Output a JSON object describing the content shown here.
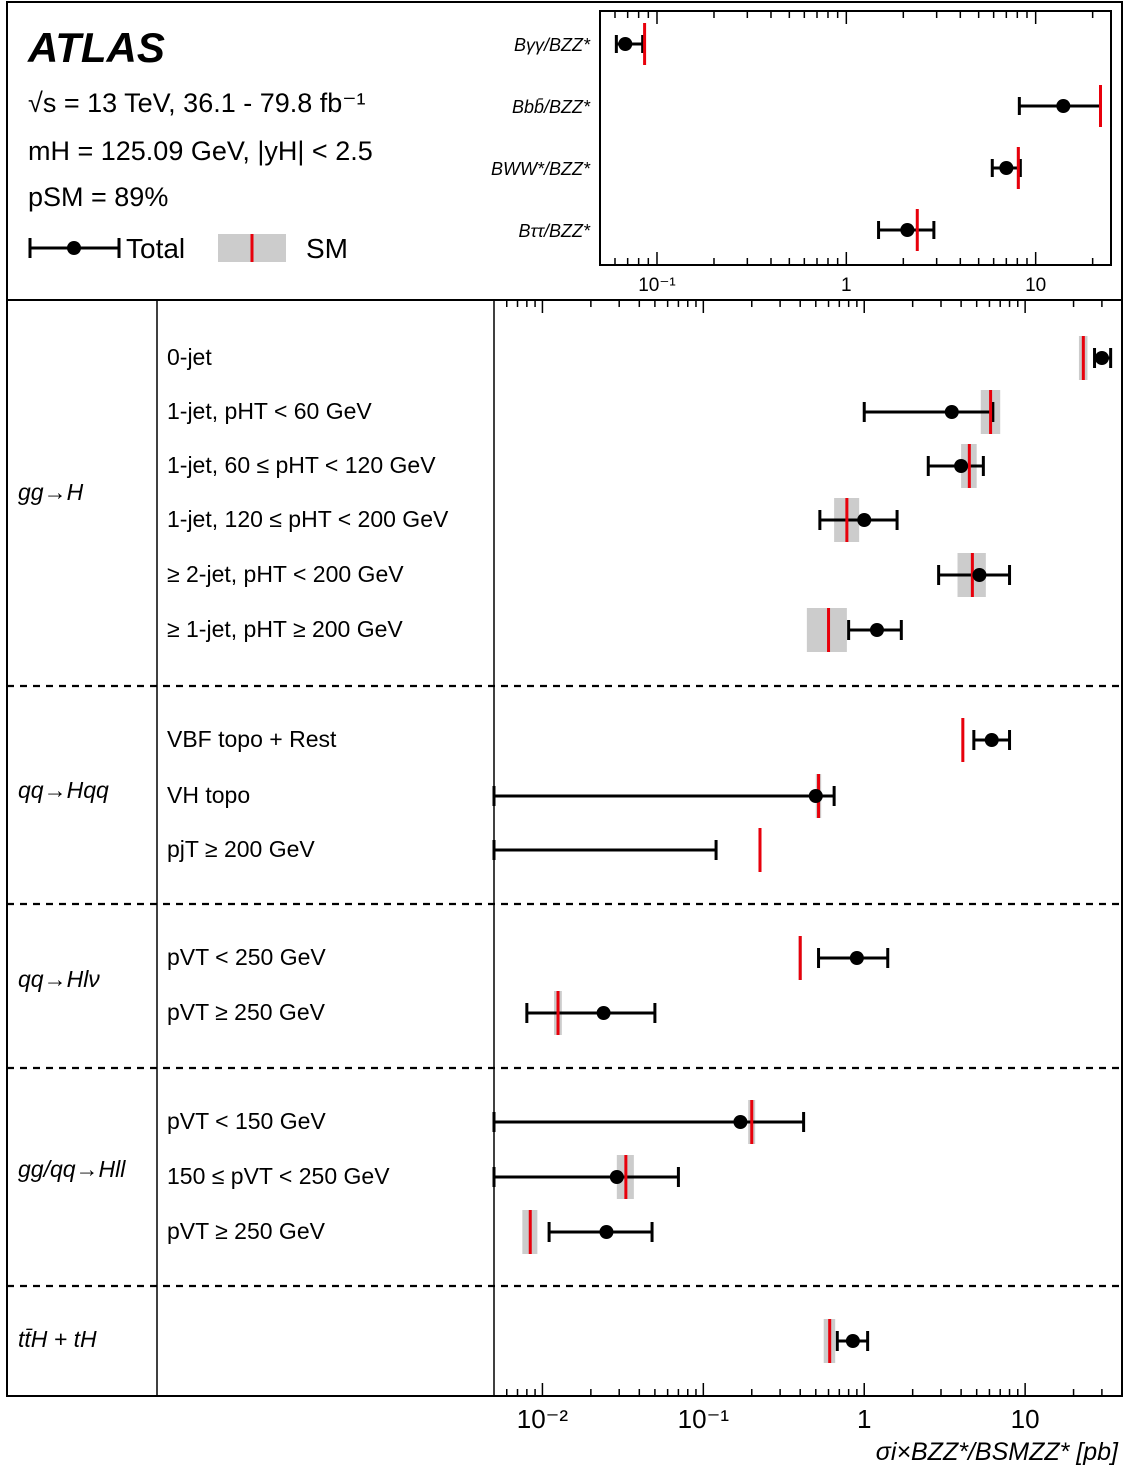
{
  "legend": {
    "experiment": "ATLAS",
    "energy_lumi": "√s = 13 TeV, 36.1 - 79.8 fb⁻¹",
    "mass_rapidity": "mH = 125.09 GeV, |yH| < 2.5",
    "p_sm": "pSM = 89%",
    "total_label": "Total",
    "sm_label": "SM"
  },
  "colors": {
    "sm_line": "#e8000b",
    "sm_band": "#cccccc",
    "marker": "#000000",
    "frame": "#000000"
  },
  "chart_data": [
    {
      "type": "scatter",
      "subtype": "horizontal-error-bars",
      "xscale": "log",
      "xlim": [
        0.05,
        25
      ],
      "xticks": [
        "10⁻¹",
        "1",
        "10"
      ],
      "grid": false,
      "points": [
        {
          "label": "Bγγ/BZZ*",
          "value": 0.068,
          "err_low": 0.061,
          "err_high": 0.084,
          "sm": 0.086,
          "sm_band": [
            0.085,
            0.087
          ]
        },
        {
          "label": "Bbb̄/BZZ*",
          "value": 14.0,
          "err_low": 8.2,
          "err_high": 22.0,
          "sm": 22.0,
          "sm_band": [
            21.8,
            22.2
          ]
        },
        {
          "label": "BWW*/BZZ*",
          "value": 7.0,
          "err_low": 5.9,
          "err_high": 8.3,
          "sm": 8.1,
          "sm_band": [
            7.95,
            8.25
          ]
        },
        {
          "label": "Bττ/BZZ*",
          "value": 2.1,
          "err_low": 1.48,
          "err_high": 2.9,
          "sm": 2.37,
          "sm_band": [
            2.34,
            2.4
          ]
        }
      ]
    },
    {
      "type": "scatter",
      "subtype": "horizontal-error-bars",
      "xscale": "log",
      "xlim": [
        0.005,
        40
      ],
      "xticks": [
        "10⁻²",
        "10⁻¹",
        "1",
        "10"
      ],
      "xlabel": "σi×BZZ*/BSMZZ* [pb]",
      "grid": false,
      "groups": [
        {
          "label": "gg→H",
          "bins": [
            {
              "label": "0-jet",
              "value": 30.0,
              "err_low": 27.0,
              "err_high": 34.0,
              "sm": 23.0,
              "sm_band": [
                21.6,
                24.4
              ]
            },
            {
              "label": "1-jet, pHT < 60 GeV",
              "value": 3.5,
              "err_low": 1.0,
              "err_high": 6.3,
              "sm": 6.1,
              "sm_band": [
                5.3,
                7.0
              ]
            },
            {
              "label": "1-jet, 60 ≤ pHT < 120 GeV",
              "value": 4.0,
              "err_low": 2.5,
              "err_high": 5.5,
              "sm": 4.5,
              "sm_band": [
                4.0,
                5.0
              ]
            },
            {
              "label": "1-jet, 120 ≤ pHT < 200 GeV",
              "value": 1.0,
              "err_low": 0.53,
              "err_high": 1.6,
              "sm": 0.78,
              "sm_band": [
                0.65,
                0.93
              ]
            },
            {
              "label": "≥ 2-jet, pHT < 200 GeV",
              "value": 5.2,
              "err_low": 2.9,
              "err_high": 8.0,
              "sm": 4.7,
              "sm_band": [
                3.8,
                5.7
              ]
            },
            {
              "label": "≥ 1-jet, pHT ≥ 200 GeV",
              "value": 1.2,
              "err_low": 0.8,
              "err_high": 1.7,
              "sm": 0.6,
              "sm_band": [
                0.44,
                0.78
              ]
            }
          ]
        },
        {
          "label": "qq→Hqq",
          "bins": [
            {
              "label": "VBF topo + Rest",
              "value": 6.2,
              "err_low": 4.8,
              "err_high": 8.0,
              "sm": 4.1,
              "sm_band": [
                4.02,
                4.18
              ]
            },
            {
              "label": "VH topo",
              "value": 0.5,
              "err_low": 0.005,
              "err_high": 0.65,
              "sm": 0.52,
              "sm_band": [
                0.5,
                0.54
              ]
            },
            {
              "label": "pjT ≥ 200 GeV",
              "value": null,
              "err_low": 0.005,
              "err_high": 0.12,
              "sm": 0.225,
              "sm_band": [
                0.22,
                0.23
              ]
            }
          ]
        },
        {
          "label": "qq→Hlν",
          "bins": [
            {
              "label": "pVT < 250 GeV",
              "value": 0.9,
              "err_low": 0.52,
              "err_high": 1.4,
              "sm": 0.4,
              "sm_band": [
                0.39,
                0.41
              ]
            },
            {
              "label": "pVT ≥ 250 GeV",
              "value": 0.024,
              "err_low": 0.008,
              "err_high": 0.05,
              "sm": 0.0125,
              "sm_band": [
                0.0118,
                0.0132
              ]
            }
          ]
        },
        {
          "label": "gg/qq→Hll",
          "bins": [
            {
              "label": "pVT < 150 GeV",
              "value": 0.17,
              "err_low": 0.005,
              "err_high": 0.42,
              "sm": 0.2,
              "sm_band": [
                0.19,
                0.21
              ]
            },
            {
              "label": "150 ≤ pVT < 250 GeV",
              "value": 0.029,
              "err_low": 0.005,
              "err_high": 0.07,
              "sm": 0.033,
              "sm_band": [
                0.029,
                0.037
              ]
            },
            {
              "label": "pVT ≥ 250 GeV",
              "value": 0.025,
              "err_low": 0.011,
              "err_high": 0.048,
              "sm": 0.0084,
              "sm_band": [
                0.0075,
                0.0093
              ]
            }
          ]
        },
        {
          "label": "tt̄H + tH",
          "bins": [
            {
              "label": "",
              "value": 0.85,
              "err_low": 0.68,
              "err_high": 1.05,
              "sm": 0.61,
              "sm_band": [
                0.56,
                0.66
              ]
            }
          ]
        }
      ]
    }
  ]
}
